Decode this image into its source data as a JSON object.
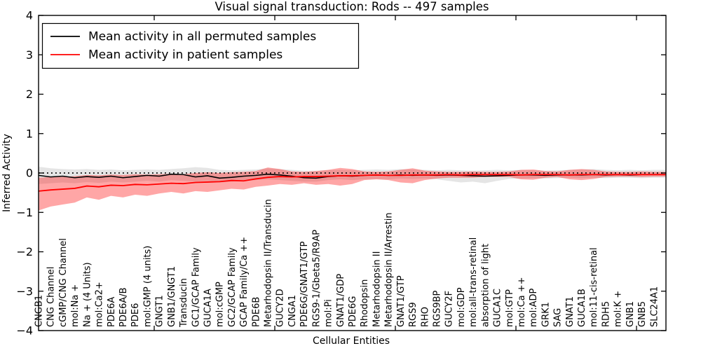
{
  "figure": {
    "title": "Visual signal transduction: Rods -- 497 samples",
    "xlabel": "Cellular Entities",
    "ylabel": "Inferred Activity"
  },
  "legend": {
    "position": "upper left",
    "items": [
      {
        "label": "Mean activity in all permuted samples",
        "color": "#000000"
      },
      {
        "label": "Mean activity in patient samples",
        "color": "#ff0000"
      }
    ]
  },
  "axes": {
    "ylim": [
      -4,
      4
    ],
    "ytick_labels": [
      "4",
      "3",
      "2",
      "1",
      "0",
      "−1",
      "−2",
      "−3",
      "−4"
    ],
    "ytick_values": [
      4,
      3,
      2,
      1,
      0,
      -1,
      -2,
      -3,
      -4
    ]
  },
  "colors": {
    "permuted_line": "#000000",
    "patient_line": "#ff0000",
    "permuted_band": "rgba(0,0,0,0.10)",
    "patient_band": "rgba(255,0,0,0.35)",
    "frame": "#000000",
    "reference_dotted": "#000000"
  },
  "chart_data": {
    "type": "line",
    "title": "Visual signal transduction: Rods -- 497 samples",
    "xlabel": "Cellular Entities",
    "ylabel": "Inferred Activity",
    "ylim": [
      -4,
      4
    ],
    "grid": false,
    "legend_position": "upper left",
    "reference_line": {
      "y": 0,
      "style": "dotted",
      "color": "#000000"
    },
    "categories": [
      "CNGB1",
      "CNG Channel",
      "cGMP/CNG Channel",
      "mol:Na +",
      "Na + (4 Units)",
      "mol:Ca2+",
      "PDE6A",
      "PDE6A/B",
      "PDE6",
      "mol:GMP (4 units)",
      "GNGT1",
      "GNB1/GNGT1",
      "Transducin",
      "GC1/GCAP Family",
      "GUCA1A",
      "mol:cGMP",
      "GC2/GCAP Family",
      "GCAP Family/Ca ++",
      "PDE6B",
      "Metarhodopsin II/Transducin",
      "GUCY2D",
      "CNGA1",
      "PDE6G/GNAT1/GTP",
      "RGS9-1/Gbeta5/R9AP",
      "mol:Pi",
      "GNAT1/GDP",
      "PDE6G",
      "Rhodopsin",
      "Metarhodopsin II",
      "Metarhodopsin II/Arrestin",
      "GNAT1/GTP",
      "RGS9",
      "RHO",
      "RGS9BP",
      "GUCY2F",
      "mol:GDP",
      "mol:all-trans-retinal",
      "absorption of light",
      "GUCA1C",
      "mol:GTP",
      "mol:Ca ++",
      "mol:ADP",
      "GRK1",
      "SAG",
      "GNAT1",
      "GUCA1B",
      "mol:11-cis-retinal",
      "RDH5",
      "mol:K +",
      "GNB1",
      "GNB5",
      "SLC24A1"
    ],
    "series": [
      {
        "name": "Mean activity in all permuted samples",
        "color": "#000000",
        "values": [
          -0.06,
          -0.1,
          -0.08,
          -0.12,
          -0.09,
          -0.11,
          -0.08,
          -0.12,
          -0.09,
          -0.06,
          -0.08,
          -0.03,
          -0.04,
          -0.1,
          -0.07,
          -0.13,
          -0.11,
          -0.08,
          -0.06,
          -0.03,
          -0.05,
          -0.08,
          -0.12,
          -0.13,
          -0.09,
          -0.07,
          -0.08,
          -0.06,
          -0.05,
          -0.06,
          -0.05,
          -0.06,
          -0.05,
          -0.06,
          -0.05,
          -0.06,
          -0.07,
          -0.08,
          -0.07,
          -0.06,
          -0.05,
          -0.05,
          -0.06,
          -0.05,
          -0.05,
          -0.05,
          -0.04,
          -0.05,
          -0.04,
          -0.05,
          -0.04,
          -0.04
        ]
      },
      {
        "name": "Mean activity in patient samples",
        "color": "#ff0000",
        "values": [
          -0.46,
          -0.43,
          -0.41,
          -0.39,
          -0.33,
          -0.35,
          -0.31,
          -0.32,
          -0.29,
          -0.3,
          -0.28,
          -0.26,
          -0.27,
          -0.24,
          -0.23,
          -0.22,
          -0.19,
          -0.2,
          -0.15,
          -0.11,
          -0.09,
          -0.1,
          -0.09,
          -0.09,
          -0.08,
          -0.07,
          -0.07,
          -0.06,
          -0.05,
          -0.06,
          -0.06,
          -0.05,
          -0.05,
          -0.05,
          -0.04,
          -0.05,
          -0.04,
          -0.04,
          -0.04,
          -0.04,
          -0.05,
          -0.04,
          -0.04,
          -0.04,
          -0.05,
          -0.04,
          -0.04,
          -0.04,
          -0.04,
          -0.04,
          -0.04,
          -0.04
        ]
      }
    ],
    "bands": [
      {
        "name": "permuted samples range",
        "color": "rgba(0,0,0,0.10)",
        "upper": [
          0.16,
          0.12,
          0.1,
          0.09,
          0.1,
          0.08,
          0.09,
          0.07,
          0.08,
          0.09,
          0.08,
          0.1,
          0.12,
          0.15,
          0.13,
          0.08,
          0.07,
          0.08,
          0.09,
          0.12,
          0.1,
          0.08,
          0.06,
          0.06,
          0.07,
          0.08,
          0.07,
          0.08,
          0.09,
          0.08,
          0.1,
          0.09,
          0.08,
          0.07,
          0.08,
          0.07,
          0.06,
          0.07,
          0.08,
          0.07,
          0.08,
          0.07,
          0.06,
          0.07,
          0.08,
          0.09,
          0.1,
          0.08,
          0.07,
          0.08,
          0.07,
          0.08
        ],
        "lower": [
          -0.28,
          -0.26,
          -0.24,
          -0.26,
          -0.23,
          -0.25,
          -0.22,
          -0.24,
          -0.22,
          -0.2,
          -0.22,
          -0.18,
          -0.2,
          -0.22,
          -0.2,
          -0.24,
          -0.22,
          -0.2,
          -0.18,
          -0.16,
          -0.18,
          -0.2,
          -0.22,
          -0.22,
          -0.18,
          -0.16,
          -0.18,
          -0.16,
          -0.15,
          -0.16,
          -0.14,
          -0.15,
          -0.14,
          -0.16,
          -0.2,
          -0.24,
          -0.22,
          -0.26,
          -0.2,
          -0.15,
          -0.14,
          -0.13,
          -0.14,
          -0.13,
          -0.12,
          -0.13,
          -0.12,
          -0.13,
          -0.12,
          -0.12,
          -0.13,
          -0.12
        ]
      },
      {
        "name": "patient samples range",
        "color": "rgba(255,0,0,0.35)",
        "upper": [
          -0.12,
          -0.1,
          -0.1,
          -0.08,
          -0.05,
          -0.06,
          -0.04,
          -0.05,
          -0.03,
          -0.04,
          -0.03,
          -0.02,
          -0.03,
          0.0,
          0.02,
          0.0,
          0.02,
          0.03,
          0.05,
          0.14,
          0.1,
          0.04,
          0.03,
          0.05,
          0.08,
          0.13,
          0.1,
          0.04,
          0.03,
          0.04,
          0.08,
          0.12,
          0.06,
          0.04,
          0.03,
          0.03,
          0.04,
          0.03,
          0.03,
          0.04,
          0.08,
          0.09,
          0.05,
          0.04,
          0.08,
          0.1,
          0.08,
          0.04,
          0.03,
          0.03,
          0.04,
          0.03
        ],
        "lower": [
          -0.95,
          -0.85,
          -0.8,
          -0.75,
          -0.62,
          -0.68,
          -0.58,
          -0.62,
          -0.55,
          -0.58,
          -0.52,
          -0.48,
          -0.52,
          -0.46,
          -0.48,
          -0.44,
          -0.4,
          -0.42,
          -0.35,
          -0.32,
          -0.28,
          -0.3,
          -0.26,
          -0.3,
          -0.28,
          -0.32,
          -0.28,
          -0.18,
          -0.16,
          -0.18,
          -0.24,
          -0.26,
          -0.18,
          -0.14,
          -0.12,
          -0.12,
          -0.12,
          -0.1,
          -0.1,
          -0.1,
          -0.16,
          -0.17,
          -0.12,
          -0.1,
          -0.16,
          -0.18,
          -0.15,
          -0.1,
          -0.09,
          -0.09,
          -0.1,
          -0.09
        ]
      }
    ]
  }
}
